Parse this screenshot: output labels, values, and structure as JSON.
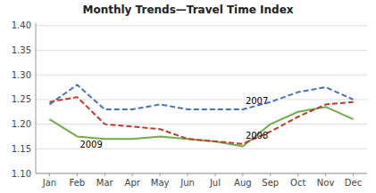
{
  "chart_data": {
    "type": "line",
    "title": "Monthly Trends—Travel Time Index",
    "categories": [
      "Jan",
      "Feb",
      "Mar",
      "Apr",
      "May",
      "Jun",
      "Jul",
      "Aug",
      "Sep",
      "Oct",
      "Nov",
      "Dec"
    ],
    "series": [
      {
        "name": "2009",
        "color": "#70AD47",
        "line_style": "solid",
        "values": [
          1.21,
          1.175,
          1.17,
          1.17,
          1.175,
          1.17,
          1.165,
          1.155,
          1.2,
          1.225,
          1.235,
          1.21
        ]
      },
      {
        "name": "2008",
        "color": "#C0392B",
        "line_style": "dashed",
        "values": [
          1.245,
          1.255,
          1.2,
          1.195,
          1.19,
          1.17,
          1.165,
          1.16,
          1.185,
          1.215,
          1.24,
          1.245
        ]
      },
      {
        "name": "2007",
        "color": "#4472C4",
        "line_style": "dashed",
        "values": [
          1.24,
          1.28,
          1.23,
          1.23,
          1.24,
          1.23,
          1.23,
          1.23,
          1.245,
          1.265,
          1.275,
          1.25
        ]
      }
    ],
    "ylim": [
      1.1,
      1.405
    ],
    "yticks": [
      {
        "value": 1.1,
        "label": "1.10"
      },
      1.15,
      {
        "value": 1.2,
        "label": "1.20"
      },
      1.25,
      {
        "value": 1.3,
        "label": "1.30"
      },
      1.35,
      {
        "value": 1.4,
        "label": "1.40"
      }
    ],
    "grid": true
  }
}
